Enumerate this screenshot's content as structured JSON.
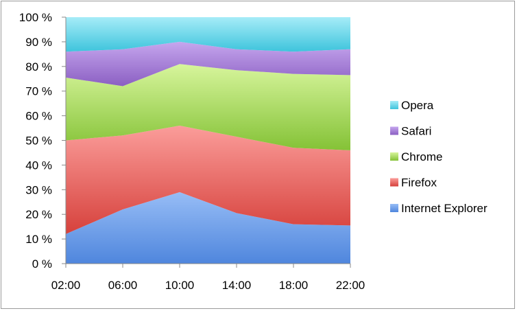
{
  "chart_data": {
    "type": "area",
    "stacked": "percent",
    "categories": [
      "02:00",
      "06:00",
      "10:00",
      "14:00",
      "18:00",
      "22:00"
    ],
    "y_tick_labels": [
      "0 %",
      "10 %",
      "20 %",
      "30 %",
      "40 %",
      "50 %",
      "60 %",
      "70 %",
      "80 %",
      "90 %",
      "100 %"
    ],
    "ylim": [
      0,
      100
    ],
    "grid": false,
    "legend_position": "right",
    "series": [
      {
        "name": "Internet Explorer",
        "values": [
          12,
          22,
          29,
          20.5,
          16,
          15.5
        ],
        "color": "#4f86dd",
        "color_light": "#97bdf6"
      },
      {
        "name": "Firefox",
        "values": [
          38,
          30,
          27,
          31,
          31,
          30.5
        ],
        "color": "#d6413c",
        "color_light": "#fb9d9a"
      },
      {
        "name": "Chrome",
        "values": [
          25.5,
          20,
          25,
          27,
          30,
          30.5
        ],
        "color": "#84c236",
        "color_light": "#d7f59c"
      },
      {
        "name": "Safari",
        "values": [
          10.5,
          15,
          9,
          8.5,
          9,
          10.5
        ],
        "color": "#8b5fc2",
        "color_light": "#c5a6ee"
      },
      {
        "name": "Opera",
        "values": [
          14,
          13,
          10,
          13,
          14,
          13
        ],
        "color": "#3ec4dc",
        "color_light": "#a6ecf8"
      }
    ]
  }
}
